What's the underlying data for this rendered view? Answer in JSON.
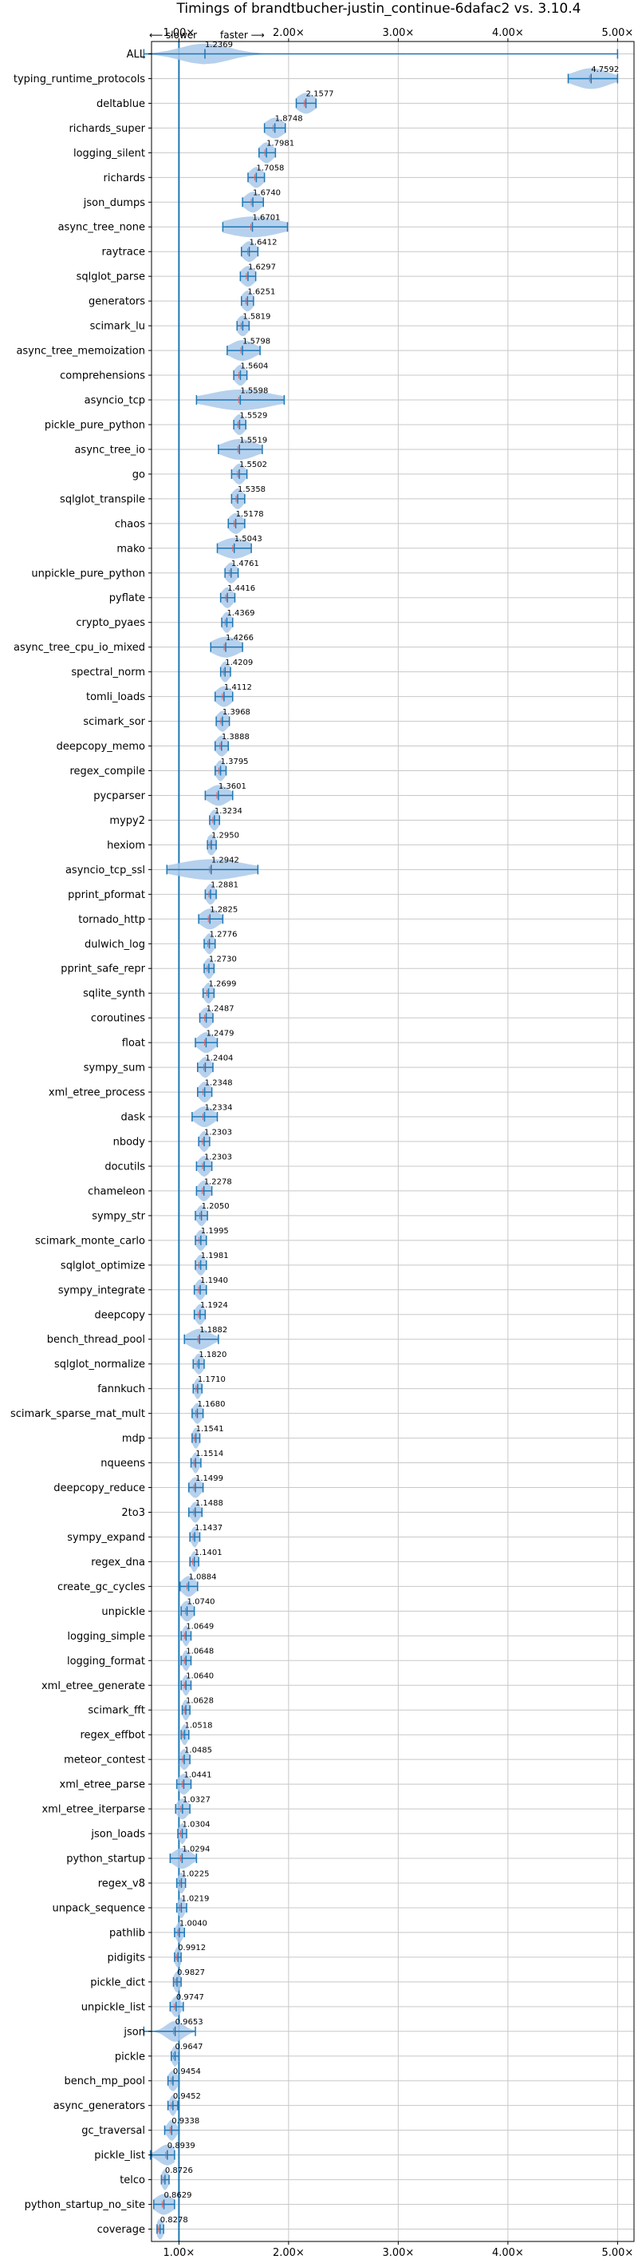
{
  "chart_data": {
    "type": "violin",
    "title": "Timings of brandtbucher-justin_continue-6dafac2 vs. 3.10.4",
    "hint_slower": "⟵ slower",
    "hint_faster": "faster ⟶",
    "xlim": [
      0.75,
      5.15
    ],
    "xticks": [
      1,
      2,
      3,
      4,
      5
    ],
    "xtick_labels": [
      "1.00×",
      "2.00×",
      "3.00×",
      "4.00×",
      "5.00×"
    ],
    "reference_line": 1.0,
    "grid": true,
    "colors": {
      "violin": "#a9c9ea",
      "accent": "#1f77b4",
      "median": "#e06060"
    },
    "benchmarks": [
      {
        "name": "ALL",
        "value": 1.2369,
        "min": 0.68,
        "max": 5.0,
        "spread": 0.22
      },
      {
        "name": "typing_runtime_protocols",
        "value": 4.7592,
        "min": 4.55,
        "max": 5.0,
        "spread": 0.16
      },
      {
        "name": "deltablue",
        "value": 2.1577,
        "min": 2.07,
        "max": 2.25,
        "spread": 0.08
      },
      {
        "name": "richards_super",
        "value": 1.8748,
        "min": 1.78,
        "max": 1.97,
        "spread": 0.08
      },
      {
        "name": "logging_silent",
        "value": 1.7981,
        "min": 1.73,
        "max": 1.88,
        "spread": 0.06
      },
      {
        "name": "richards",
        "value": 1.7058,
        "min": 1.63,
        "max": 1.78,
        "spread": 0.06
      },
      {
        "name": "json_dumps",
        "value": 1.674,
        "min": 1.58,
        "max": 1.77,
        "spread": 0.07
      },
      {
        "name": "async_tree_none",
        "value": 1.6701,
        "min": 1.4,
        "max": 1.99,
        "spread": 0.25
      },
      {
        "name": "raytrace",
        "value": 1.6412,
        "min": 1.57,
        "max": 1.72,
        "spread": 0.06
      },
      {
        "name": "sqlglot_parse",
        "value": 1.6297,
        "min": 1.56,
        "max": 1.7,
        "spread": 0.06
      },
      {
        "name": "generators",
        "value": 1.6251,
        "min": 1.57,
        "max": 1.68,
        "spread": 0.05
      },
      {
        "name": "scimark_lu",
        "value": 1.5819,
        "min": 1.53,
        "max": 1.64,
        "spread": 0.05
      },
      {
        "name": "async_tree_memoization",
        "value": 1.5798,
        "min": 1.44,
        "max": 1.74,
        "spread": 0.11
      },
      {
        "name": "comprehensions",
        "value": 1.5604,
        "min": 1.5,
        "max": 1.62,
        "spread": 0.05
      },
      {
        "name": "asyncio_tcp",
        "value": 1.5598,
        "min": 1.16,
        "max": 1.96,
        "spread": 0.28
      },
      {
        "name": "pickle_pure_python",
        "value": 1.5529,
        "min": 1.5,
        "max": 1.61,
        "spread": 0.05
      },
      {
        "name": "async_tree_io",
        "value": 1.5519,
        "min": 1.36,
        "max": 1.76,
        "spread": 0.15
      },
      {
        "name": "go",
        "value": 1.5502,
        "min": 1.48,
        "max": 1.62,
        "spread": 0.05
      },
      {
        "name": "sqlglot_transpile",
        "value": 1.5358,
        "min": 1.48,
        "max": 1.6,
        "spread": 0.05
      },
      {
        "name": "chaos",
        "value": 1.5178,
        "min": 1.45,
        "max": 1.6,
        "spread": 0.06
      },
      {
        "name": "mako",
        "value": 1.5043,
        "min": 1.35,
        "max": 1.66,
        "spread": 0.13
      },
      {
        "name": "unpickle_pure_python",
        "value": 1.4761,
        "min": 1.42,
        "max": 1.54,
        "spread": 0.05
      },
      {
        "name": "pyflate",
        "value": 1.4416,
        "min": 1.38,
        "max": 1.51,
        "spread": 0.05
      },
      {
        "name": "crypto_pyaes",
        "value": 1.4369,
        "min": 1.39,
        "max": 1.49,
        "spread": 0.04
      },
      {
        "name": "async_tree_cpu_io_mixed",
        "value": 1.4266,
        "min": 1.29,
        "max": 1.58,
        "spread": 0.12
      },
      {
        "name": "spectral_norm",
        "value": 1.4209,
        "min": 1.38,
        "max": 1.47,
        "spread": 0.04
      },
      {
        "name": "tomli_loads",
        "value": 1.4112,
        "min": 1.33,
        "max": 1.49,
        "spread": 0.07
      },
      {
        "name": "scimark_sor",
        "value": 1.3968,
        "min": 1.34,
        "max": 1.46,
        "spread": 0.05
      },
      {
        "name": "deepcopy_memo",
        "value": 1.3888,
        "min": 1.33,
        "max": 1.45,
        "spread": 0.05
      },
      {
        "name": "regex_compile",
        "value": 1.3795,
        "min": 1.33,
        "max": 1.43,
        "spread": 0.04
      },
      {
        "name": "pycparser",
        "value": 1.3601,
        "min": 1.24,
        "max": 1.49,
        "spread": 0.09
      },
      {
        "name": "mypy2",
        "value": 1.3234,
        "min": 1.28,
        "max": 1.37,
        "spread": 0.04
      },
      {
        "name": "hexiom",
        "value": 1.295,
        "min": 1.26,
        "max": 1.34,
        "spread": 0.04
      },
      {
        "name": "asyncio_tcp_ssl",
        "value": 1.2942,
        "min": 0.89,
        "max": 1.72,
        "spread": 0.3
      },
      {
        "name": "pprint_pformat",
        "value": 1.2881,
        "min": 1.24,
        "max": 1.34,
        "spread": 0.04
      },
      {
        "name": "tornado_http",
        "value": 1.2825,
        "min": 1.18,
        "max": 1.4,
        "spread": 0.08
      },
      {
        "name": "dulwich_log",
        "value": 1.2776,
        "min": 1.23,
        "max": 1.33,
        "spread": 0.04
      },
      {
        "name": "pprint_safe_repr",
        "value": 1.273,
        "min": 1.23,
        "max": 1.32,
        "spread": 0.04
      },
      {
        "name": "sqlite_synth",
        "value": 1.2699,
        "min": 1.22,
        "max": 1.32,
        "spread": 0.04
      },
      {
        "name": "coroutines",
        "value": 1.2487,
        "min": 1.19,
        "max": 1.31,
        "spread": 0.05
      },
      {
        "name": "float",
        "value": 1.2479,
        "min": 1.15,
        "max": 1.35,
        "spread": 0.07
      },
      {
        "name": "sympy_sum",
        "value": 1.2404,
        "min": 1.17,
        "max": 1.31,
        "spread": 0.05
      },
      {
        "name": "xml_etree_process",
        "value": 1.2348,
        "min": 1.17,
        "max": 1.3,
        "spread": 0.05
      },
      {
        "name": "dask",
        "value": 1.2334,
        "min": 1.12,
        "max": 1.35,
        "spread": 0.08
      },
      {
        "name": "nbody",
        "value": 1.2303,
        "min": 1.18,
        "max": 1.28,
        "spread": 0.04
      },
      {
        "name": "docutils",
        "value": 1.2303,
        "min": 1.16,
        "max": 1.3,
        "spread": 0.05
      },
      {
        "name": "chameleon",
        "value": 1.2278,
        "min": 1.16,
        "max": 1.3,
        "spread": 0.05
      },
      {
        "name": "sympy_str",
        "value": 1.205,
        "min": 1.15,
        "max": 1.26,
        "spread": 0.04
      },
      {
        "name": "scimark_monte_carlo",
        "value": 1.1995,
        "min": 1.15,
        "max": 1.25,
        "spread": 0.04
      },
      {
        "name": "sqlglot_optimize",
        "value": 1.1981,
        "min": 1.15,
        "max": 1.25,
        "spread": 0.04
      },
      {
        "name": "sympy_integrate",
        "value": 1.194,
        "min": 1.14,
        "max": 1.25,
        "spread": 0.04
      },
      {
        "name": "deepcopy",
        "value": 1.1924,
        "min": 1.14,
        "max": 1.24,
        "spread": 0.04
      },
      {
        "name": "bench_thread_pool",
        "value": 1.1882,
        "min": 1.05,
        "max": 1.36,
        "spread": 0.1
      },
      {
        "name": "sqlglot_normalize",
        "value": 1.182,
        "min": 1.13,
        "max": 1.23,
        "spread": 0.04
      },
      {
        "name": "fannkuch",
        "value": 1.171,
        "min": 1.13,
        "max": 1.21,
        "spread": 0.03
      },
      {
        "name": "scimark_sparse_mat_mult",
        "value": 1.168,
        "min": 1.12,
        "max": 1.22,
        "spread": 0.04
      },
      {
        "name": "mdp",
        "value": 1.1541,
        "min": 1.12,
        "max": 1.19,
        "spread": 0.03
      },
      {
        "name": "nqueens",
        "value": 1.1514,
        "min": 1.11,
        "max": 1.2,
        "spread": 0.03
      },
      {
        "name": "deepcopy_reduce",
        "value": 1.1499,
        "min": 1.09,
        "max": 1.22,
        "spread": 0.05
      },
      {
        "name": "2to3",
        "value": 1.1488,
        "min": 1.09,
        "max": 1.21,
        "spread": 0.04
      },
      {
        "name": "sympy_expand",
        "value": 1.1437,
        "min": 1.1,
        "max": 1.19,
        "spread": 0.03
      },
      {
        "name": "regex_dna",
        "value": 1.1401,
        "min": 1.1,
        "max": 1.18,
        "spread": 0.03
      },
      {
        "name": "create_gc_cycles",
        "value": 1.0884,
        "min": 1.01,
        "max": 1.17,
        "spread": 0.06
      },
      {
        "name": "unpickle",
        "value": 1.074,
        "min": 1.02,
        "max": 1.14,
        "spread": 0.05
      },
      {
        "name": "logging_simple",
        "value": 1.0649,
        "min": 1.02,
        "max": 1.11,
        "spread": 0.03
      },
      {
        "name": "logging_format",
        "value": 1.0648,
        "min": 1.02,
        "max": 1.11,
        "spread": 0.03
      },
      {
        "name": "xml_etree_generate",
        "value": 1.064,
        "min": 1.02,
        "max": 1.11,
        "spread": 0.03
      },
      {
        "name": "scimark_fft",
        "value": 1.0628,
        "min": 1.03,
        "max": 1.1,
        "spread": 0.03
      },
      {
        "name": "regex_effbot",
        "value": 1.0518,
        "min": 1.02,
        "max": 1.09,
        "spread": 0.03
      },
      {
        "name": "meteor_contest",
        "value": 1.0485,
        "min": 1.0,
        "max": 1.1,
        "spread": 0.04
      },
      {
        "name": "xml_etree_parse",
        "value": 1.0441,
        "min": 0.98,
        "max": 1.11,
        "spread": 0.05
      },
      {
        "name": "xml_etree_iterparse",
        "value": 1.0327,
        "min": 0.97,
        "max": 1.1,
        "spread": 0.05
      },
      {
        "name": "json_loads",
        "value": 1.0304,
        "min": 0.99,
        "max": 1.07,
        "spread": 0.03
      },
      {
        "name": "python_startup",
        "value": 1.0294,
        "min": 0.92,
        "max": 1.16,
        "spread": 0.08
      },
      {
        "name": "regex_v8",
        "value": 1.0225,
        "min": 0.98,
        "max": 1.06,
        "spread": 0.03
      },
      {
        "name": "unpack_sequence",
        "value": 1.0219,
        "min": 0.98,
        "max": 1.07,
        "spread": 0.03
      },
      {
        "name": "pathlib",
        "value": 1.004,
        "min": 0.96,
        "max": 1.05,
        "spread": 0.03
      },
      {
        "name": "pidigits",
        "value": 0.9912,
        "min": 0.96,
        "max": 1.02,
        "spread": 0.03
      },
      {
        "name": "pickle_dict",
        "value": 0.9827,
        "min": 0.95,
        "max": 1.02,
        "spread": 0.03
      },
      {
        "name": "unpickle_list",
        "value": 0.9747,
        "min": 0.92,
        "max": 1.04,
        "spread": 0.04
      },
      {
        "name": "json",
        "value": 0.9653,
        "min": 0.68,
        "max": 1.15,
        "spread": 0.08
      },
      {
        "name": "pickle",
        "value": 0.9647,
        "min": 0.93,
        "max": 1.0,
        "spread": 0.03
      },
      {
        "name": "bench_mp_pool",
        "value": 0.9454,
        "min": 0.9,
        "max": 1.0,
        "spread": 0.04
      },
      {
        "name": "async_generators",
        "value": 0.9452,
        "min": 0.9,
        "max": 0.99,
        "spread": 0.03
      },
      {
        "name": "gc_traversal",
        "value": 0.9338,
        "min": 0.87,
        "max": 1.0,
        "spread": 0.04
      },
      {
        "name": "pickle_list",
        "value": 0.8939,
        "min": 0.74,
        "max": 0.96,
        "spread": 0.08
      },
      {
        "name": "telco",
        "value": 0.8726,
        "min": 0.84,
        "max": 0.91,
        "spread": 0.03
      },
      {
        "name": "python_startup_no_site",
        "value": 0.8629,
        "min": 0.77,
        "max": 0.96,
        "spread": 0.08
      },
      {
        "name": "coverage",
        "value": 0.8278,
        "min": 0.8,
        "max": 0.86,
        "spread": 0.03
      }
    ]
  }
}
